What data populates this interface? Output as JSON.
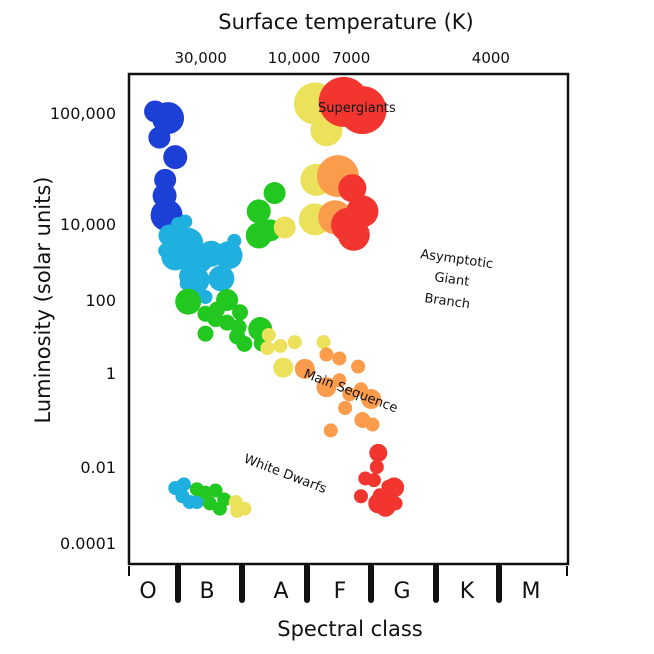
{
  "chart_data": {
    "type": "scatter",
    "title": "Surface temperature (K)",
    "xlabel": "Spectral class",
    "ylabel": "Luminosity (solar units)",
    "top_ticks": [
      {
        "label": "30,000",
        "cls": 0.83
      },
      {
        "label": "10,000",
        "cls": 2.3
      },
      {
        "label": "7000",
        "cls": 3.2
      },
      {
        "label": "4000",
        "cls": 5.4
      }
    ],
    "y_ticks": [
      {
        "label": "100,000",
        "value": 100000
      },
      {
        "label": "10,000",
        "value": 10000
      },
      {
        "label": "100",
        "value": 100
      },
      {
        "label": "1",
        "value": 1
      },
      {
        "label": "0.01",
        "value": 0.01
      },
      {
        "label": "0.0001",
        "value": 0.0001
      }
    ],
    "classes": [
      "O",
      "B",
      "A",
      "F",
      "G",
      "K",
      "M"
    ],
    "colors": {
      "O": "#1c3fd6",
      "B": "#1fb0e0",
      "A": "#22c71f",
      "F": "#ebe15a",
      "G": "#fb9b4c",
      "K": "#f2362f"
    },
    "annotations": {
      "supergiants": "Supergiants",
      "agb_line1": "Asymptotic",
      "agb_line2": "Giant",
      "agb_line3": "Branch",
      "main_sequence": "Main Sequence",
      "white_dwarfs": "White Dwarfs"
    },
    "points": [
      {
        "x": 0.35,
        "y": 110000,
        "color": "O",
        "size": 11
      },
      {
        "x": 0.5,
        "y": 60000,
        "color": "O",
        "size": 11
      },
      {
        "x": 0.8,
        "y": 90000,
        "color": "O",
        "size": 16
      },
      {
        "x": 1.05,
        "y": 40000,
        "color": "O",
        "size": 12
      },
      {
        "x": 0.7,
        "y": 25000,
        "color": "O",
        "size": 11
      },
      {
        "x": 0.68,
        "y": 18000,
        "color": "O",
        "size": 12
      },
      {
        "x": 0.75,
        "y": 12000,
        "color": "O",
        "size": 16
      },
      {
        "x": 1.15,
        "y": 10000,
        "color": "B",
        "size": 7
      },
      {
        "x": 1.4,
        "y": 10500,
        "color": "B",
        "size": 7
      },
      {
        "x": 0.85,
        "y": 5000,
        "color": "B",
        "size": 11
      },
      {
        "x": 1.15,
        "y": 4500,
        "color": "B",
        "size": 11
      },
      {
        "x": 1.5,
        "y": 3200,
        "color": "B",
        "size": 15
      },
      {
        "x": 0.7,
        "y": 2000,
        "color": "B",
        "size": 7
      },
      {
        "x": 1.05,
        "y": 1400,
        "color": "B",
        "size": 14
      },
      {
        "x": 1.55,
        "y": 1200,
        "color": "B",
        "size": 12
      },
      {
        "x": 2.3,
        "y": 1650,
        "color": "B",
        "size": 13
      },
      {
        "x": 2.9,
        "y": 1500,
        "color": "B",
        "size": 14
      },
      {
        "x": 3.1,
        "y": 3600,
        "color": "B",
        "size": 7
      },
      {
        "x": 1.95,
        "y": 1050,
        "color": "B",
        "size": 11
      },
      {
        "x": 1.6,
        "y": 430,
        "color": "B",
        "size": 12
      },
      {
        "x": 1.75,
        "y": 330,
        "color": "B",
        "size": 14
      },
      {
        "x": 2.45,
        "y": 360,
        "color": "B",
        "size": 7
      },
      {
        "x": 1.45,
        "y": 270,
        "color": "B",
        "size": 7
      },
      {
        "x": 2.65,
        "y": 370,
        "color": "B",
        "size": 13
      },
      {
        "x": 2.1,
        "y": 120,
        "color": "B",
        "size": 7
      },
      {
        "x": 1.5,
        "y": 90,
        "color": "A",
        "size": 13
      },
      {
        "x": 2.1,
        "y": 42,
        "color": "A",
        "size": 8
      },
      {
        "x": 2.5,
        "y": 55,
        "color": "A",
        "size": 8
      },
      {
        "x": 2.85,
        "y": 100,
        "color": "A",
        "size": 11
      },
      {
        "x": 2.45,
        "y": 30,
        "color": "A",
        "size": 8
      },
      {
        "x": 2.85,
        "y": 24,
        "color": "A",
        "size": 8
      },
      {
        "x": 3.3,
        "y": 46,
        "color": "A",
        "size": 8
      },
      {
        "x": 3.25,
        "y": 18,
        "color": "A",
        "size": 8
      },
      {
        "x": 2.1,
        "y": 12,
        "color": "A",
        "size": 8
      },
      {
        "x": 3.2,
        "y": 10,
        "color": "A",
        "size": 8
      },
      {
        "x": 3.45,
        "y": 6.3,
        "color": "A",
        "size": 8
      },
      {
        "x": 4.0,
        "y": 16,
        "color": "A",
        "size": 12
      },
      {
        "x": 4.05,
        "y": 6.5,
        "color": "A",
        "size": 8
      },
      {
        "x": 3.95,
        "y": 13000,
        "color": "A",
        "size": 12
      },
      {
        "x": 4.5,
        "y": 19000,
        "color": "A",
        "size": 11
      },
      {
        "x": 3.95,
        "y": 5000,
        "color": "A",
        "size": 13
      },
      {
        "x": 4.35,
        "y": 6800,
        "color": "A",
        "size": 11
      },
      {
        "x": 4.85,
        "y": 8100,
        "color": "F",
        "size": 11
      },
      {
        "x": 4.3,
        "y": 11,
        "color": "F",
        "size": 7
      },
      {
        "x": 4.25,
        "y": 4.8,
        "color": "F",
        "size": 7
      },
      {
        "x": 4.7,
        "y": 5.5,
        "color": "F",
        "size": 7
      },
      {
        "x": 4.8,
        "y": 1.4,
        "color": "F",
        "size": 10
      },
      {
        "x": 5.2,
        "y": 7,
        "color": "F",
        "size": 7
      },
      {
        "x": 5.55,
        "y": 1.3,
        "color": "G",
        "size": 10
      },
      {
        "x": 6.2,
        "y": 7,
        "color": "F",
        "size": 7
      },
      {
        "x": 6.3,
        "y": 3.2,
        "color": "G",
        "size": 7
      },
      {
        "x": 6.75,
        "y": 2.5,
        "color": "G",
        "size": 7
      },
      {
        "x": 7.4,
        "y": 1.5,
        "color": "G",
        "size": 7
      },
      {
        "x": 6.3,
        "y": 0.5,
        "color": "G",
        "size": 10
      },
      {
        "x": 6.75,
        "y": 0.7,
        "color": "G",
        "size": 7
      },
      {
        "x": 7.1,
        "y": 0.35,
        "color": "G",
        "size": 7
      },
      {
        "x": 7.5,
        "y": 0.45,
        "color": "G",
        "size": 7
      },
      {
        "x": 6.95,
        "y": 0.18,
        "color": "G",
        "size": 7
      },
      {
        "x": 7.55,
        "y": 0.1,
        "color": "G",
        "size": 8
      },
      {
        "x": 6.45,
        "y": 0.06,
        "color": "G",
        "size": 7
      },
      {
        "x": 7.9,
        "y": 0.08,
        "color": "G",
        "size": 7
      },
      {
        "x": 7.85,
        "y": 0.28,
        "color": "G",
        "size": 10
      },
      {
        "x": 8.1,
        "y": 0.02,
        "color": "K",
        "size": 9
      },
      {
        "x": 8.05,
        "y": 0.01,
        "color": "K",
        "size": 7
      },
      {
        "x": 7.65,
        "y": 0.005,
        "color": "K",
        "size": 7
      },
      {
        "x": 7.95,
        "y": 0.0045,
        "color": "K",
        "size": 7
      },
      {
        "x": 8.45,
        "y": 0.003,
        "color": "K",
        "size": 7
      },
      {
        "x": 8.65,
        "y": 0.0029,
        "color": "K",
        "size": 10
      },
      {
        "x": 7.5,
        "y": 0.0017,
        "color": "K",
        "size": 7
      },
      {
        "x": 8.15,
        "y": 0.0018,
        "color": "K",
        "size": 7
      },
      {
        "x": 8.45,
        "y": 0.0015,
        "color": "K",
        "size": 7
      },
      {
        "x": 8.1,
        "y": 0.0011,
        "color": "K",
        "size": 10
      },
      {
        "x": 8.35,
        "y": 0.0009,
        "color": "K",
        "size": 10
      },
      {
        "x": 8.7,
        "y": 0.0011,
        "color": "K",
        "size": 7
      },
      {
        "x": 1.05,
        "y": 0.0028,
        "color": "B",
        "size": 7
      },
      {
        "x": 1.35,
        "y": 0.0035,
        "color": "B",
        "size": 7
      },
      {
        "x": 1.3,
        "y": 0.0017,
        "color": "B",
        "size": 7
      },
      {
        "x": 1.55,
        "y": 0.0012,
        "color": "B",
        "size": 7
      },
      {
        "x": 1.8,
        "y": 0.0012,
        "color": "B",
        "size": 7
      },
      {
        "x": 1.8,
        "y": 0.0026,
        "color": "A",
        "size": 7
      },
      {
        "x": 2.1,
        "y": 0.0021,
        "color": "A",
        "size": 7
      },
      {
        "x": 2.45,
        "y": 0.0024,
        "color": "A",
        "size": 7
      },
      {
        "x": 2.25,
        "y": 0.0011,
        "color": "A",
        "size": 7
      },
      {
        "x": 2.6,
        "y": 0.0008,
        "color": "A",
        "size": 7
      },
      {
        "x": 2.75,
        "y": 0.0014,
        "color": "A",
        "size": 7
      },
      {
        "x": 3.15,
        "y": 0.0012,
        "color": "F",
        "size": 7
      },
      {
        "x": 3.2,
        "y": 0.0007,
        "color": "F",
        "size": 7
      },
      {
        "x": 3.45,
        "y": 0.0008,
        "color": "F",
        "size": 7
      },
      {
        "x": 5.9,
        "y": 180000,
        "color": "F",
        "size": 21
      },
      {
        "x": 6.3,
        "y": 70000,
        "color": "F",
        "size": 16
      },
      {
        "x": 6.9,
        "y": 200000,
        "color": "K",
        "size": 25
      },
      {
        "x": 7.55,
        "y": 120000,
        "color": "K",
        "size": 24
      },
      {
        "x": 5.95,
        "y": 25000,
        "color": "F",
        "size": 16
      },
      {
        "x": 5.9,
        "y": 11000,
        "color": "F",
        "size": 16
      },
      {
        "x": 6.7,
        "y": 27000,
        "color": "G",
        "size": 21
      },
      {
        "x": 6.6,
        "y": 11500,
        "color": "G",
        "size": 17
      },
      {
        "x": 7.2,
        "y": 21000,
        "color": "K",
        "size": 14
      },
      {
        "x": 7.55,
        "y": 13000,
        "color": "K",
        "size": 16
      },
      {
        "x": 7.05,
        "y": 9500,
        "color": "K",
        "size": 17
      },
      {
        "x": 7.25,
        "y": 5200,
        "color": "K",
        "size": 16
      }
    ]
  }
}
